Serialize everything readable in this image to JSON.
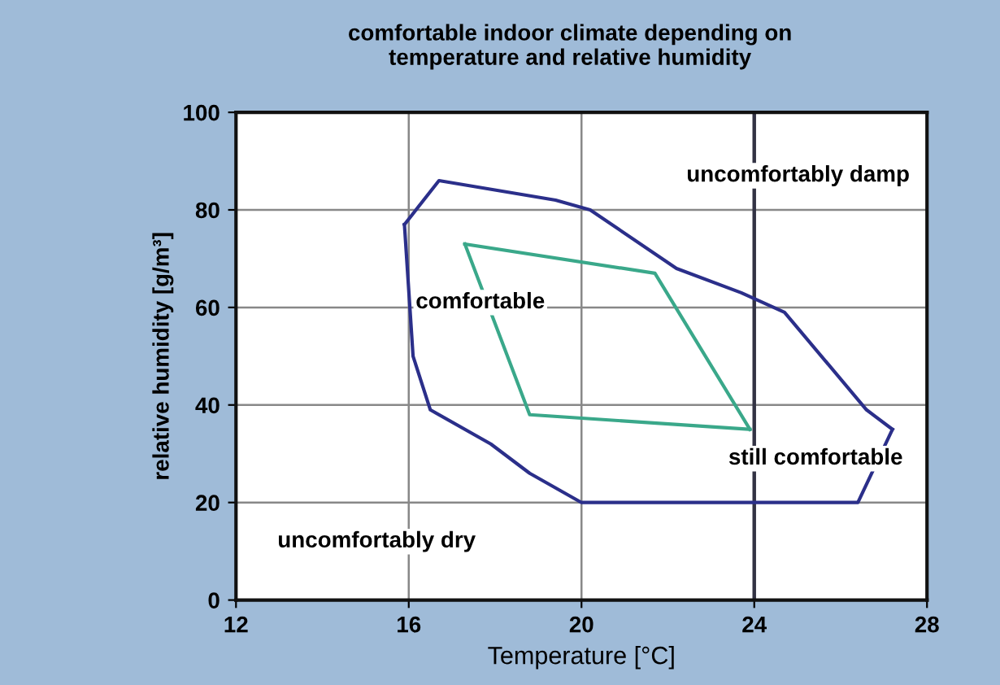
{
  "chart_data": {
    "type": "line",
    "title": "comfortable indoor climate depending on\ntemperature and relative humidity",
    "xlabel": "Temperature [°C]",
    "ylabel": "relative humidity [g/m³]",
    "xlim": [
      12,
      28
    ],
    "xticks": [
      12,
      16,
      20,
      24,
      28
    ],
    "ylim": [
      0,
      100
    ],
    "yticks": [
      0,
      20,
      40,
      60,
      80,
      100
    ],
    "grid": true,
    "marker": "none",
    "line_style": "solid",
    "ref_lines": [
      {
        "axis": "x",
        "value": 24,
        "color": "#333344"
      }
    ],
    "series": [
      {
        "color": "#2b2f8a",
        "x": [
          15.9,
          16.7,
          19.4,
          20.2,
          22.2,
          23.7,
          24.7,
          26.6,
          27.2
        ],
        "values": [
          77,
          86,
          82,
          80,
          68,
          63,
          59,
          39,
          35
        ]
      },
      {
        "color": "#2b2f8a",
        "x": [
          15.9,
          16.1,
          16.5,
          17.9,
          18.8,
          20,
          26.4,
          27.2
        ],
        "values": [
          77,
          50,
          39,
          32,
          26,
          20,
          20,
          35
        ]
      },
      {
        "color": "#3aa88a",
        "x": [
          17.3,
          21.7,
          23.9
        ],
        "values": [
          73,
          67,
          35
        ]
      },
      {
        "color": "#3aa88a",
        "x": [
          17.3,
          18.8,
          23.9
        ],
        "values": [
          73,
          38,
          35
        ]
      }
    ],
    "annotations": [
      "uncomfortably damp",
      "comfortable",
      "still comfortable",
      "uncomfortably dry"
    ]
  }
}
